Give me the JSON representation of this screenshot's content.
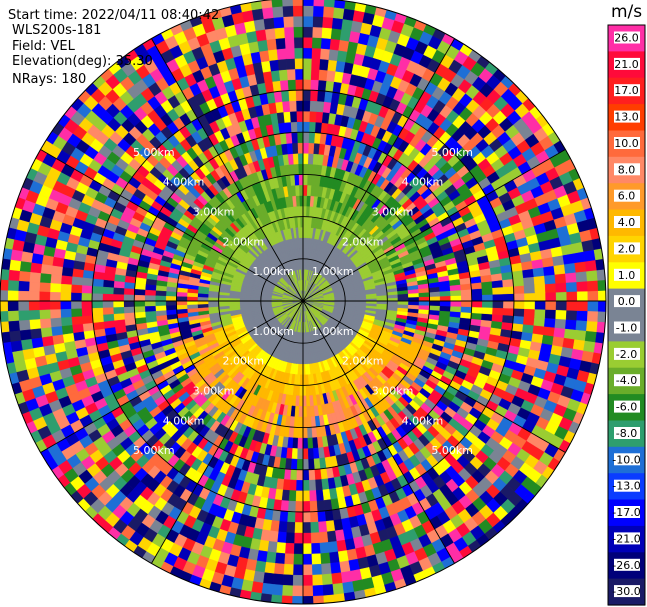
{
  "header": {
    "start_time": "Start time: 2022/04/11 08:40:42",
    "instrument": "WLS200s-181",
    "field": "Field: VEL",
    "elevation": "Elevation(deg): 35.30",
    "nrays": "NRays: 180"
  },
  "chart_data": {
    "type": "heatmap",
    "projection": "polar-ppi",
    "field": "VEL",
    "units": "m/s",
    "n_rays": 180,
    "elevation_deg": 35.3,
    "range_rings_km": [
      1,
      2,
      3,
      4,
      5
    ],
    "ring_labels": [
      "1.00km",
      "2.00km",
      "3.00km",
      "4.00km",
      "5.00km"
    ],
    "max_range_km": 7.2,
    "colorbar": {
      "ticks": [
        "26.0",
        "21.0",
        "17.0",
        "13.0",
        "10.0",
        "8.0",
        "6.0",
        "4.0",
        "2.0",
        "1.0",
        "0.0",
        "-1.0",
        "-2.0",
        "-4.0",
        "-6.0",
        "-8.0",
        "-10.0",
        "-13.0",
        "-17.0",
        "-21.0",
        "-26.0",
        "-30.0"
      ],
      "colors": [
        "#ff2ea6",
        "#ff0a3a",
        "#ff1f1f",
        "#ff3d00",
        "#ff6a3c",
        "#ff8866",
        "#ff9a2a",
        "#ffb800",
        "#ffd400",
        "#ffff00",
        "#7a8494",
        "#7a8494",
        "#9acd32",
        "#6aad2a",
        "#228b22",
        "#2e9e6e",
        "#1e6fd6",
        "#0a3cff",
        "#0000ff",
        "#0000b8",
        "#00007a",
        "#1a1a66"
      ]
    },
    "structure": [
      {
        "range_km": [
          0,
          0.4
        ],
        "value": "noisy near-zero"
      },
      {
        "range_km": [
          0.4,
          2.3
        ],
        "value": 0.0,
        "desc": "gray core with green/yellow rings"
      },
      {
        "range_km": [
          2.3,
          3.2
        ],
        "value": "north side -2 to -6 (green), south side 2 to 10 (yellow-orange)"
      },
      {
        "range_km": [
          3.2,
          7.2
        ],
        "value": "noise / random colors"
      }
    ]
  }
}
